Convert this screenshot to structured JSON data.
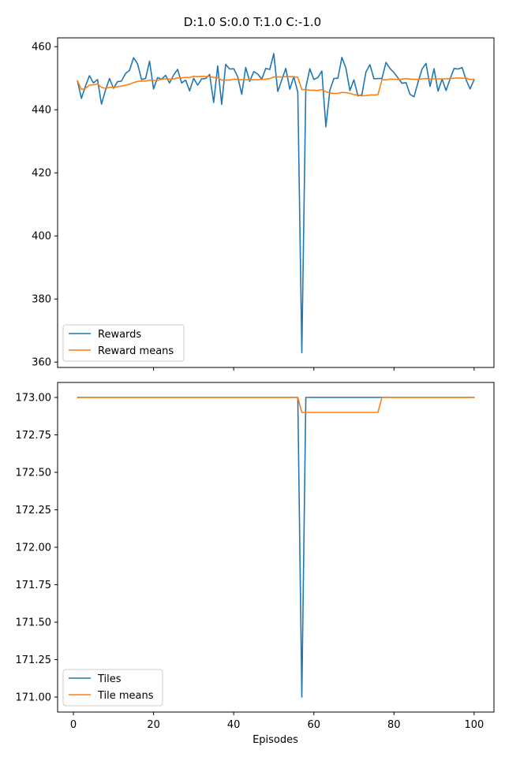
{
  "figure_title": "D:1.0 S:0.0 T:1.0 C:-1.0",
  "chart_data": [
    {
      "type": "line",
      "title": "",
      "xlabel": "",
      "ylabel": "",
      "xlim": [
        -3.95,
        104.95
      ],
      "ylim": [
        358.3,
        462.8
      ],
      "x_ticks": [
        20,
        40,
        60,
        80,
        100
      ],
      "x_tick_labels_visible": false,
      "y_ticks": [
        360,
        380,
        400,
        420,
        440,
        460
      ],
      "y_tick_labels": [
        "360",
        "380",
        "400",
        "420",
        "440",
        "460"
      ],
      "grid": false,
      "legend_position": "lower-left",
      "x": [
        1,
        2,
        3,
        4,
        5,
        6,
        7,
        8,
        9,
        10,
        11,
        12,
        13,
        14,
        15,
        16,
        17,
        18,
        19,
        20,
        21,
        22,
        23,
        24,
        25,
        26,
        27,
        28,
        29,
        30,
        31,
        32,
        33,
        34,
        35,
        36,
        37,
        38,
        39,
        40,
        41,
        42,
        43,
        44,
        45,
        46,
        47,
        48,
        49,
        50,
        51,
        52,
        53,
        54,
        55,
        56,
        57,
        58,
        59,
        60,
        61,
        62,
        63,
        64,
        65,
        66,
        67,
        68,
        69,
        70,
        71,
        72,
        73,
        74,
        75,
        76,
        77,
        78,
        79,
        80,
        81,
        82,
        83,
        84,
        85,
        86,
        87,
        88,
        89,
        90,
        91,
        92,
        93,
        94,
        95,
        96,
        97,
        98,
        99,
        100
      ],
      "series": [
        {
          "name": "Rewards",
          "color": "#1f77b4",
          "values": [
            449.2,
            443.6,
            447.5,
            450.8,
            448.5,
            449.6,
            441.8,
            446.2,
            449.9,
            446.8,
            448.9,
            449.1,
            451.5,
            452.5,
            456.5,
            454.6,
            449.6,
            449.9,
            455.4,
            446.6,
            450.2,
            449.7,
            450.9,
            448.5,
            451.0,
            452.8,
            448.5,
            449.4,
            446.0,
            450.0,
            447.8,
            449.8,
            449.9,
            451.2,
            442.3,
            453.9,
            441.7,
            454.4,
            452.9,
            453.0,
            450.5,
            444.9,
            453.4,
            449.0,
            452.1,
            451.3,
            449.7,
            453.1,
            452.8,
            457.8,
            445.8,
            449.5,
            453.1,
            446.5,
            450.5,
            445.5,
            363.0,
            447.1,
            453.0,
            449.6,
            450.2,
            452.3,
            434.6,
            446.2,
            449.9,
            450.0,
            456.6,
            453.2,
            446.1,
            449.5,
            444.4,
            444.8,
            452.0,
            454.3,
            449.8,
            449.9,
            449.9,
            455.0,
            453.1,
            451.8,
            450.1,
            448.4,
            448.6,
            444.9,
            444.1,
            448.7,
            452.9,
            454.7,
            447.4,
            453.0,
            445.9,
            449.7,
            446.1,
            449.8,
            453.1,
            452.9,
            453.4,
            449.5,
            446.6,
            449.5
          ]
        },
        {
          "name": "Reward means",
          "color": "#ff7f0e",
          "values": [
            449.2,
            446.4,
            446.8,
            447.8,
            447.9,
            448.2,
            447.1,
            446.8,
            447.1,
            447.1,
            447.3,
            447.5,
            447.8,
            448.1,
            448.6,
            449.0,
            449.1,
            449.1,
            449.4,
            449.3,
            449.3,
            449.7,
            449.8,
            449.7,
            449.8,
            450.1,
            450.1,
            450.3,
            450.2,
            450.6,
            450.5,
            450.6,
            450.5,
            450.6,
            450.2,
            450.2,
            449.4,
            449.4,
            449.4,
            449.7,
            449.6,
            449.5,
            449.5,
            449.5,
            449.5,
            449.5,
            449.6,
            449.7,
            449.9,
            450.4,
            450.4,
            450.4,
            450.5,
            450.5,
            450.5,
            450.3,
            446.4,
            446.4,
            446.2,
            446.2,
            446.1,
            446.4,
            445.7,
            445.3,
            445.2,
            445.2,
            445.5,
            445.4,
            445.2,
            444.8,
            444.7,
            444.4,
            444.5,
            444.7,
            444.7,
            444.8,
            449.5,
            449.5,
            449.7,
            449.7,
            449.6,
            449.7,
            449.9,
            449.7,
            449.7,
            449.6,
            449.8,
            449.9,
            449.7,
            449.8,
            449.8,
            449.8,
            449.8,
            449.9,
            450.0,
            450.1,
            450.0,
            450.0,
            449.6,
            449.7
          ]
        }
      ]
    },
    {
      "type": "line",
      "title": "",
      "xlabel": "Episodes",
      "ylabel": "",
      "xlim": [
        -3.95,
        104.95
      ],
      "ylim": [
        170.9,
        173.1
      ],
      "x_ticks": [
        0,
        20,
        40,
        60,
        80,
        100
      ],
      "x_tick_labels": [
        "0",
        "20",
        "40",
        "60",
        "80",
        "100"
      ],
      "y_ticks": [
        171.0,
        171.25,
        171.5,
        171.75,
        172.0,
        172.25,
        172.5,
        172.75,
        173.0
      ],
      "y_tick_labels": [
        "171.00",
        "171.25",
        "171.50",
        "171.75",
        "172.00",
        "172.25",
        "172.50",
        "172.75",
        "173.00"
      ],
      "grid": false,
      "legend_position": "lower-left",
      "x": [
        1,
        2,
        3,
        4,
        5,
        6,
        7,
        8,
        9,
        10,
        11,
        12,
        13,
        14,
        15,
        16,
        17,
        18,
        19,
        20,
        21,
        22,
        23,
        24,
        25,
        26,
        27,
        28,
        29,
        30,
        31,
        32,
        33,
        34,
        35,
        36,
        37,
        38,
        39,
        40,
        41,
        42,
        43,
        44,
        45,
        46,
        47,
        48,
        49,
        50,
        51,
        52,
        53,
        54,
        55,
        56,
        57,
        58,
        59,
        60,
        61,
        62,
        63,
        64,
        65,
        66,
        67,
        68,
        69,
        70,
        71,
        72,
        73,
        74,
        75,
        76,
        77,
        78,
        79,
        80,
        81,
        82,
        83,
        84,
        85,
        86,
        87,
        88,
        89,
        90,
        91,
        92,
        93,
        94,
        95,
        96,
        97,
        98,
        99,
        100
      ],
      "series": [
        {
          "name": "Tiles",
          "color": "#1f77b4",
          "values": [
            173,
            173,
            173,
            173,
            173,
            173,
            173,
            173,
            173,
            173,
            173,
            173,
            173,
            173,
            173,
            173,
            173,
            173,
            173,
            173,
            173,
            173,
            173,
            173,
            173,
            173,
            173,
            173,
            173,
            173,
            173,
            173,
            173,
            173,
            173,
            173,
            173,
            173,
            173,
            173,
            173,
            173,
            173,
            173,
            173,
            173,
            173,
            173,
            173,
            173,
            173,
            173,
            173,
            173,
            173,
            173,
            171,
            173,
            173,
            173,
            173,
            173,
            173,
            173,
            173,
            173,
            173,
            173,
            173,
            173,
            173,
            173,
            173,
            173,
            173,
            173,
            173,
            173,
            173,
            173,
            173,
            173,
            173,
            173,
            173,
            173,
            173,
            173,
            173,
            173,
            173,
            173,
            173,
            173,
            173,
            173,
            173,
            173,
            173,
            173
          ]
        },
        {
          "name": "Tile means",
          "color": "#ff7f0e",
          "values": [
            173,
            173,
            173,
            173,
            173,
            173,
            173,
            173,
            173,
            173,
            173,
            173,
            173,
            173,
            173,
            173,
            173,
            173,
            173,
            173,
            173,
            173,
            173,
            173,
            173,
            173,
            173,
            173,
            173,
            173,
            173,
            173,
            173,
            173,
            173,
            173,
            173,
            173,
            173,
            173,
            173,
            173,
            173,
            173,
            173,
            173,
            173,
            173,
            173,
            173,
            173,
            173,
            173,
            173,
            173,
            173,
            172.9,
            172.9,
            172.9,
            172.9,
            172.9,
            172.9,
            172.9,
            172.9,
            172.9,
            172.9,
            172.9,
            172.9,
            172.9,
            172.9,
            172.9,
            172.9,
            172.9,
            172.9,
            172.9,
            172.9,
            173,
            173,
            173,
            173,
            173,
            173,
            173,
            173,
            173,
            173,
            173,
            173,
            173,
            173,
            173,
            173,
            173,
            173,
            173,
            173,
            173,
            173,
            173,
            173
          ]
        }
      ]
    }
  ]
}
